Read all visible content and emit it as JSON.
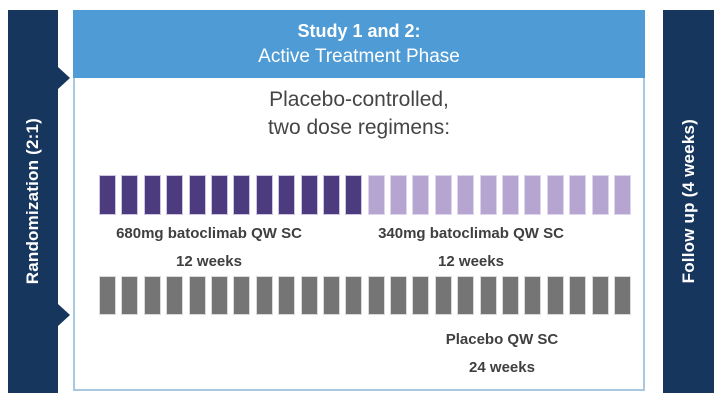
{
  "header": {
    "title_line1": "Study 1 and 2:",
    "title_line2": "Active Treatment Phase"
  },
  "banners": {
    "left": "Randomization (2:1)",
    "right": "Follow up (4 weeks)"
  },
  "intro": {
    "line1": "Placebo-controlled,",
    "line2": "two dose regimens:"
  },
  "arms": [
    {
      "id": "batoclimab-680",
      "label": "680mg batoclimab QW SC",
      "duration": "12 weeks",
      "segments": 12,
      "color": "#4d3b80",
      "edge": "#cfc5e1"
    },
    {
      "id": "batoclimab-340",
      "label": "340mg batoclimab QW SC",
      "duration": "12 weeks",
      "segments": 12,
      "color": "#b6a4d1",
      "edge": "#ded6ec"
    },
    {
      "id": "placebo",
      "label": "Placebo QW SC",
      "duration": "24 weeks",
      "segments": 24,
      "color": "#757575",
      "edge": "#dadada"
    }
  ],
  "colors": {
    "navy": "#17365d",
    "header_blue": "#4e9bd5",
    "box_border": "#a8c8e2",
    "text": "#3f3f3f"
  }
}
